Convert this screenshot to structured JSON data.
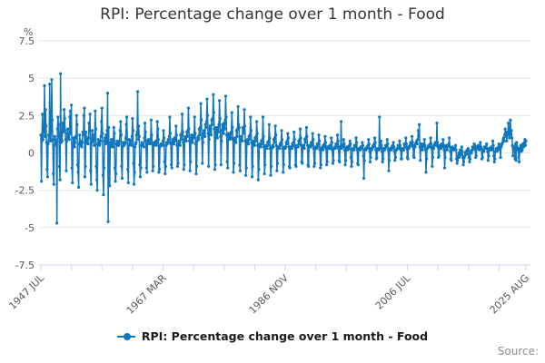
{
  "header": {
    "title": "RPI: Percentage change over 1 month - Food"
  },
  "legend": {
    "label": "RPI: Percentage change over 1 month - Food"
  },
  "footer": {
    "source_label": "Source:"
  },
  "colors": {
    "series": "#1077bc",
    "grid": "#e6e6e6",
    "axis": "#ccd6eb",
    "tick_label": "#595959",
    "title": "#333333",
    "legend_text": "#1a1a1a",
    "source_text": "#8c8c8c",
    "background": "#ffffff"
  },
  "chart_data": {
    "type": "line",
    "title": "RPI: Percentage change over 1 month - Food",
    "xlabel": "",
    "ylabel": "%",
    "ylim": [
      -7.5,
      7.5
    ],
    "y_ticks": [
      7.5,
      5,
      2.5,
      0,
      -2.5,
      -5,
      -7.5
    ],
    "y_tick_labels": [
      "7.5",
      "5",
      "2.5",
      "0",
      "-2.5",
      "-5",
      "-7.5"
    ],
    "grid": "horizontal-only",
    "legend_position": "bottom",
    "marker": "circle",
    "frequency": "monthly",
    "start": "1947-07",
    "end": "2025-08",
    "x_major_ticks": [
      {
        "month_index": 0,
        "label": "1947 JUL"
      },
      {
        "month_index": 236,
        "label": "1967 MAR"
      },
      {
        "month_index": 472,
        "label": "1986 NOV"
      },
      {
        "month_index": 708,
        "label": "2006 JUL"
      },
      {
        "month_index": 937,
        "label": "2025 AUG"
      }
    ],
    "minor_tick_step_months": 59,
    "series_name": "RPI: Percentage change over 1 month - Food",
    "values_by_year": {
      "1947": [
        1.2,
        -1.9,
        0.8,
        2.6,
        0.9,
        1.4
      ],
      "1948": [
        1.6,
        4.5,
        1.1,
        2.9,
        1.8,
        0.7,
        -1.1,
        -1.6,
        0.6,
        1.2,
        0.8,
        4.6
      ],
      "1949": [
        2.1,
        0.8,
        1.5,
        4.9,
        2.2,
        0.9,
        -1.4,
        -2.1,
        0.5,
        1.1,
        0.9,
        0.6
      ],
      "1950": [
        0.8,
        -4.7,
        1.6,
        2.4,
        1.9,
        1.1,
        -0.9,
        -1.8,
        5.3,
        0.7,
        1.2,
        0.8
      ],
      "1951": [
        2.0,
        1.4,
        1.7,
        2.9,
        2.3,
        1.5,
        0.9,
        -1.2,
        0.8,
        1.3,
        1.6,
        1.0
      ],
      "1952": [
        1.2,
        0.9,
        2.4,
        2.8,
        1.3,
        3.2,
        -1.0,
        -2.0,
        0.5,
        1.0,
        0.8,
        0.4
      ],
      "1953": [
        0.7,
        1.1,
        1.0,
        2.5,
        1.9,
        -0.8,
        -1.3,
        -2.3,
        0.6,
        1.2,
        0.5,
        0.6
      ],
      "1954": [
        0.8,
        0.4,
        0.7,
        1.4,
        1.2,
        2.5,
        3.0,
        -1.6,
        -0.9,
        1.4,
        1.0,
        0.7
      ],
      "1955": [
        0.9,
        0.6,
        1.0,
        2.0,
        1.5,
        2.6,
        -1.2,
        -2.1,
        0.7,
        1.5,
        1.2,
        0.8
      ],
      "1956": [
        1.0,
        0.5,
        1.2,
        2.8,
        1.6,
        -0.9,
        -1.8,
        -2.5,
        0.6,
        0.9,
        0.7,
        0.5
      ],
      "1957": [
        0.6,
        0.8,
        1.1,
        2.1,
        3.0,
        1.3,
        -1.5,
        -2.8,
        -1.0,
        0.8,
        1.0,
        0.6
      ],
      "1958": [
        1.2,
        0.7,
        1.5,
        4.0,
        -4.6,
        1.7,
        -1.2,
        -2.2,
        0.5,
        0.7,
        0.9,
        0.4
      ],
      "1959": [
        0.7,
        0.4,
        0.9,
        1.7,
        1.3,
        -1.0,
        -1.9,
        -1.4,
        0.6,
        0.8,
        0.5,
        0.7
      ],
      "1960": [
        0.5,
        0.6,
        0.8,
        1.5,
        2.1,
        1.2,
        -0.9,
        -1.7,
        0.4,
        0.7,
        0.6,
        0.5
      ],
      "1961": [
        0.6,
        0.7,
        1.0,
        1.9,
        2.4,
        0.9,
        -1.1,
        -2.0,
        0.5,
        0.9,
        0.8,
        0.6
      ],
      "1962": [
        0.8,
        0.5,
        1.1,
        2.3,
        1.5,
        -0.7,
        -2.1,
        -1.3,
        0.4,
        0.6,
        0.7,
        1.2
      ],
      "1963": [
        1.4,
        4.1,
        0.9,
        1.8,
        1.1,
        -0.8,
        -1.6,
        -1.0,
        0.5,
        0.7,
        0.6,
        0.5
      ],
      "1964": [
        0.6,
        0.4,
        1.0,
        2.0,
        1.4,
        0.8,
        -1.0,
        -1.3,
        0.6,
        0.8,
        0.9,
        0.7
      ],
      "1965": [
        0.7,
        0.6,
        0.9,
        2.2,
        1.2,
        0.7,
        -1.2,
        -0.9,
        0.5,
        0.6,
        0.7,
        0.6
      ],
      "1966": [
        0.8,
        0.5,
        0.7,
        2.1,
        1.6,
        0.9,
        -1.3,
        -1.1,
        0.4,
        0.5,
        0.6,
        0.5
      ],
      "1967": [
        0.6,
        0.5,
        0.8,
        1.5,
        1.0,
        -0.6,
        -1.4,
        -0.9,
        0.5,
        0.7,
        0.6,
        0.7
      ],
      "1968": [
        0.9,
        0.7,
        1.1,
        2.4,
        1.3,
        0.6,
        -0.8,
        -1.0,
        0.7,
        0.9,
        0.8,
        0.6
      ],
      "1969": [
        1.0,
        0.8,
        0.9,
        1.8,
        1.2,
        0.5,
        -0.9,
        -0.7,
        0.6,
        0.8,
        0.7,
        0.5
      ],
      "1970": [
        1.2,
        0.9,
        1.3,
        2.6,
        1.4,
        0.7,
        -1.1,
        -0.8,
        0.9,
        1.1,
        1.0,
        0.8
      ],
      "1971": [
        1.4,
        1.1,
        1.5,
        3.0,
        1.6,
        0.8,
        -1.2,
        -0.6,
        1.0,
        1.2,
        0.9,
        0.7
      ],
      "1972": [
        1.1,
        1.0,
        1.2,
        2.4,
        1.3,
        0.6,
        -1.4,
        -0.9,
        0.8,
        1.0,
        1.1,
        0.9
      ],
      "1973": [
        1.6,
        1.2,
        1.7,
        3.3,
        2.2,
        1.0,
        -0.7,
        0.7,
        1.3,
        1.5,
        1.4,
        1.1
      ],
      "1974": [
        1.9,
        1.7,
        2.1,
        3.6,
        2.5,
        1.3,
        -0.9,
        0.9,
        1.6,
        1.8,
        1.5,
        1.2
      ],
      "1975": [
        2.2,
        1.9,
        2.3,
        3.9,
        2.7,
        1.6,
        -1.1,
        -0.8,
        1.4,
        1.7,
        1.3,
        1.0
      ],
      "1976": [
        1.7,
        1.4,
        1.9,
        3.5,
        2.3,
        1.1,
        -0.8,
        0.8,
        1.5,
        1.9,
        1.6,
        1.3
      ],
      "1977": [
        2.0,
        1.6,
        2.2,
        3.8,
        2.4,
        1.2,
        -0.6,
        -1.0,
        1.1,
        1.3,
        1.0,
        0.9
      ],
      "1978": [
        1.3,
        1.0,
        1.4,
        2.7,
        1.7,
        0.9,
        -1.3,
        -0.7,
        0.8,
        1.0,
        0.9,
        0.7
      ],
      "1979": [
        1.5,
        1.1,
        1.6,
        3.1,
        1.9,
        1.7,
        -0.8,
        -1.2,
        0.9,
        1.1,
        1.0,
        0.8
      ],
      "1980": [
        1.7,
        1.3,
        1.5,
        2.9,
        1.8,
        0.8,
        -1.5,
        -1.0,
        0.7,
        0.9,
        0.8,
        0.6
      ],
      "1981": [
        1.1,
        0.9,
        1.2,
        2.4,
        1.5,
        0.7,
        -1.6,
        -0.9,
        0.6,
        0.8,
        0.7,
        0.5
      ],
      "1982": [
        1.0,
        0.8,
        1.1,
        2.1,
        1.3,
        0.5,
        -1.8,
        -1.1,
        0.5,
        0.6,
        0.5,
        0.4
      ],
      "1983": [
        0.8,
        0.6,
        0.9,
        2.4,
        1.1,
        0.4,
        -1.4,
        -0.8,
        0.4,
        0.5,
        0.4,
        0.3
      ],
      "1984": [
        0.7,
        0.5,
        0.8,
        1.9,
        1.0,
        0.3,
        -1.5,
        -0.9,
        0.3,
        0.4,
        0.5,
        0.4
      ],
      "1985": [
        0.9,
        0.7,
        1.0,
        1.8,
        1.2,
        0.5,
        -1.2,
        -0.7,
        0.4,
        0.3,
        0.4,
        0.3
      ],
      "1986": [
        0.6,
        0.5,
        0.7,
        1.5,
        0.9,
        0.3,
        -1.3,
        -0.8,
        0.3,
        0.4,
        0.3,
        0.4
      ],
      "1987": [
        0.7,
        0.6,
        0.8,
        1.3,
        1.0,
        0.4,
        -0.9,
        -1.0,
        0.3,
        0.4,
        0.4,
        0.3
      ],
      "1988": [
        0.6,
        0.5,
        0.7,
        1.4,
        0.9,
        0.4,
        -0.8,
        -0.9,
        0.4,
        0.5,
        0.4,
        0.4
      ],
      "1989": [
        0.8,
        0.6,
        0.9,
        1.6,
        1.0,
        0.5,
        -0.6,
        -0.7,
        0.4,
        0.5,
        0.4,
        0.3
      ],
      "1990": [
        0.9,
        0.7,
        1.0,
        1.7,
        1.1,
        0.5,
        -0.8,
        -0.9,
        0.4,
        0.4,
        0.5,
        0.4
      ],
      "1991": [
        0.7,
        0.5,
        0.7,
        1.3,
        0.9,
        0.3,
        -0.9,
        -0.7,
        0.3,
        0.4,
        0.3,
        0.3
      ],
      "1992": [
        0.6,
        0.4,
        0.6,
        1.2,
        0.8,
        0.2,
        -1.0,
        -0.8,
        0.3,
        0.3,
        0.4,
        0.2
      ],
      "1993": [
        0.5,
        0.4,
        0.6,
        1.1,
        0.7,
        0.3,
        -0.8,
        -0.6,
        0.4,
        0.4,
        0.3,
        0.3
      ],
      "1994": [
        0.5,
        0.3,
        0.5,
        1.0,
        0.7,
        0.2,
        -0.7,
        -0.5,
        0.3,
        0.3,
        0.4,
        0.3
      ],
      "1995": [
        0.6,
        0.4,
        0.6,
        1.2,
        0.8,
        0.3,
        -0.5,
        -0.6,
        0.4,
        0.3,
        2.1,
        0.3
      ],
      "1996": [
        0.5,
        0.4,
        0.5,
        0.9,
        0.6,
        0.2,
        -0.8,
        -0.5,
        0.3,
        0.4,
        0.3,
        0.2
      ],
      "1997": [
        0.4,
        0.3,
        0.5,
        0.8,
        0.6,
        -0.3,
        -0.9,
        -0.6,
        0.2,
        0.3,
        0.3,
        0.2
      ],
      "1998": [
        0.5,
        0.4,
        0.4,
        1.0,
        0.7,
        0.2,
        -0.7,
        -0.8,
        0.3,
        0.2,
        0.3,
        0.2
      ],
      "1999": [
        0.4,
        0.3,
        0.4,
        0.7,
        0.5,
        -0.2,
        -1.7,
        -0.5,
        0.2,
        0.3,
        0.2,
        0.3
      ],
      "2000": [
        0.4,
        0.3,
        0.5,
        0.9,
        0.6,
        0.1,
        -0.6,
        -0.3,
        0.3,
        0.2,
        0.3,
        0.4
      ],
      "2001": [
        0.5,
        0.4,
        0.6,
        1.0,
        0.7,
        0.2,
        -0.4,
        -0.3,
        0.2,
        0.3,
        0.3,
        0.2
      ],
      "2002": [
        2.4,
        0.3,
        0.4,
        0.8,
        0.5,
        0.1,
        -0.6,
        -0.4,
        0.3,
        0.2,
        0.2,
        0.3
      ],
      "2003": [
        0.5,
        0.4,
        0.5,
        0.9,
        0.6,
        0.2,
        -1.2,
        -0.5,
        0.2,
        0.3,
        0.3,
        0.2
      ],
      "2004": [
        0.4,
        0.3,
        0.5,
        0.7,
        0.4,
        0.1,
        -0.5,
        -0.3,
        0.2,
        0.2,
        0.3,
        0.3
      ],
      "2005": [
        0.5,
        0.3,
        0.4,
        0.8,
        0.5,
        0.2,
        -0.4,
        -0.4,
        0.3,
        0.2,
        0.2,
        0.2
      ],
      "2006": [
        0.6,
        0.4,
        0.5,
        1.0,
        0.6,
        0.3,
        -0.3,
        -0.4,
        0.4,
        0.3,
        0.4,
        0.5
      ],
      "2007": [
        0.7,
        0.5,
        0.6,
        1.1,
        0.7,
        0.4,
        -0.2,
        -0.3,
        0.5,
        0.4,
        0.6,
        0.7
      ],
      "2008": [
        0.8,
        0.6,
        0.9,
        1.5,
        1.1,
        1.9,
        0.4,
        -0.5,
        0.6,
        0.4,
        0.3,
        0.2
      ],
      "2009": [
        0.6,
        0.5,
        0.4,
        0.9,
        0.5,
        0.2,
        -1.3,
        -0.4,
        0.3,
        0.3,
        0.4,
        0.5
      ],
      "2010": [
        0.5,
        0.4,
        0.6,
        1.0,
        0.6,
        0.3,
        -0.9,
        -0.3,
        0.4,
        0.3,
        0.5,
        0.6
      ],
      "2011": [
        0.7,
        0.6,
        0.5,
        2.0,
        0.7,
        0.4,
        -0.3,
        -0.2,
        0.5,
        0.4,
        0.3,
        0.3
      ],
      "2012": [
        0.6,
        0.4,
        0.5,
        0.9,
        0.5,
        0.2,
        -1.0,
        -0.3,
        0.4,
        0.5,
        0.3,
        0.2
      ],
      "2013": [
        0.5,
        0.5,
        0.6,
        1.0,
        0.4,
        0.1,
        -0.4,
        -0.5,
        0.3,
        0.4,
        0.2,
        0.3
      ],
      "2014": [
        0.3,
        0.2,
        0.3,
        0.5,
        0.2,
        -0.4,
        -0.7,
        -0.5,
        -0.2,
        0.0,
        -0.3,
        -0.2
      ],
      "2015": [
        0.2,
        0.1,
        -0.1,
        0.4,
        0.1,
        -0.3,
        -0.8,
        -0.6,
        -0.3,
        -0.2,
        0.0,
        0.1
      ],
      "2016": [
        0.1,
        -0.1,
        0.2,
        0.3,
        0.2,
        -0.3,
        -0.6,
        -0.4,
        0.0,
        0.1,
        0.0,
        0.2
      ],
      "2017": [
        0.4,
        0.3,
        0.4,
        0.6,
        0.5,
        0.2,
        -0.3,
        -0.2,
        0.4,
        0.3,
        0.4,
        0.5
      ],
      "2018": [
        0.3,
        0.2,
        0.5,
        0.7,
        0.4,
        0.3,
        -0.4,
        -0.3,
        0.2,
        0.2,
        0.1,
        0.4
      ],
      "2019": [
        0.3,
        0.3,
        0.4,
        0.6,
        0.3,
        0.1,
        -0.5,
        -0.2,
        0.3,
        0.2,
        0.2,
        0.3
      ],
      "2020": [
        0.4,
        0.2,
        0.3,
        0.8,
        0.5,
        -0.2,
        -0.6,
        -0.4,
        0.1,
        0.3,
        0.2,
        0.1
      ],
      "2021": [
        0.3,
        0.2,
        0.4,
        0.6,
        0.4,
        0.3,
        -0.3,
        0.4,
        0.5,
        0.6,
        0.7,
        0.9
      ],
      "2022": [
        1.0,
        0.8,
        1.2,
        1.6,
        1.3,
        1.1,
        0.8,
        1.4,
        1.2,
        2.0,
        1.5,
        1.0
      ],
      "2023": [
        1.7,
        2.2,
        1.2,
        1.5,
        1.0,
        0.5,
        -0.2,
        0.4,
        0.3,
        0.4,
        -0.4,
        0.6
      ],
      "2024": [
        -0.5,
        0.7,
        0.4,
        0.3,
        0.2,
        -0.3,
        -0.6,
        0.3,
        0.2,
        0.5,
        0.1,
        0.4
      ],
      "2025": [
        0.2,
        0.6,
        0.5,
        0.4,
        0.7,
        0.9,
        0.5,
        0.8
      ]
    }
  }
}
